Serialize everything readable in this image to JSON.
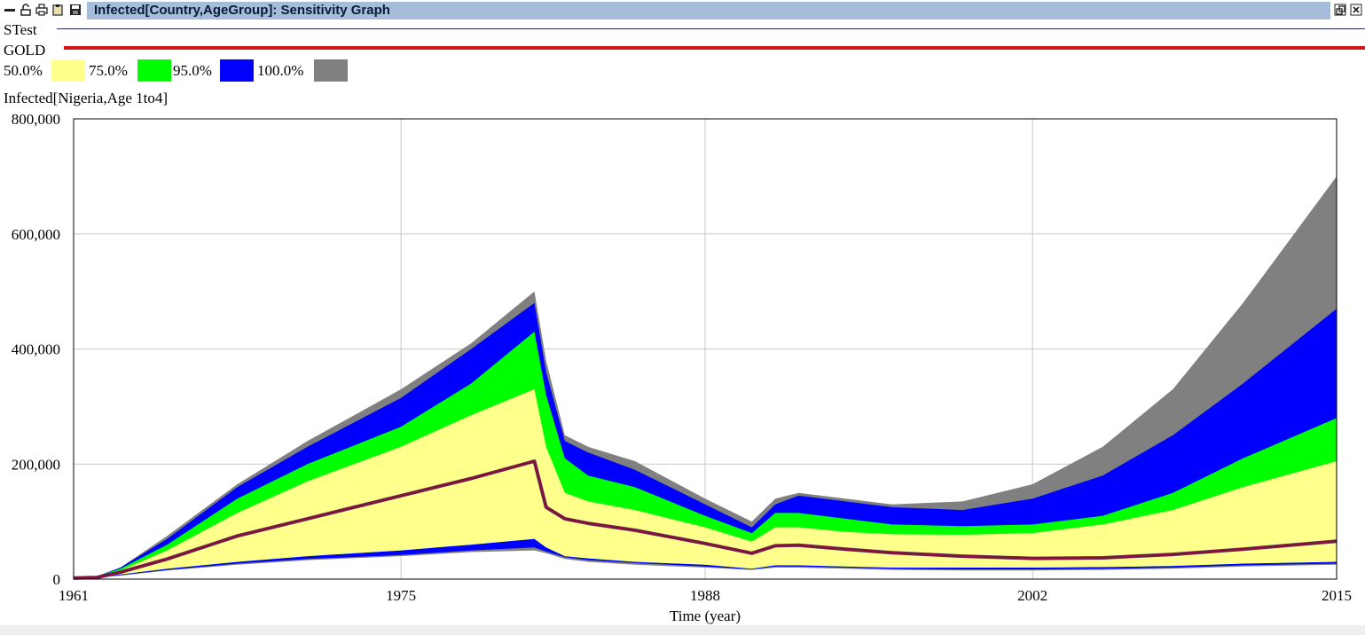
{
  "window": {
    "title": "Infected[Country,AgeGroup]: Sensitivity Graph",
    "icons": [
      "minimize-icon",
      "unlock-icon",
      "print-icon",
      "clipboard-icon",
      "save-icon"
    ],
    "right_icons": [
      "restore-icon",
      "close-icon"
    ]
  },
  "legend": {
    "lines": [
      {
        "name": "STest",
        "color": "#22285e"
      },
      {
        "name": "GOLD",
        "color": "#d41414"
      }
    ],
    "bands": [
      {
        "label": "50.0%",
        "color": "#ffff8c"
      },
      {
        "label": "75.0%",
        "color": "#00ff00"
      },
      {
        "label": "95.0%",
        "color": "#0000ff"
      },
      {
        "label": "100.0%",
        "color": "#808080"
      }
    ]
  },
  "variable_label": "Infected[Nigeria,Age 1to4]",
  "chart_data": {
    "type": "area",
    "title": "",
    "xlabel": "Time (year)",
    "ylabel": "",
    "xlim": [
      1961,
      2015
    ],
    "ylim": [
      0,
      800000
    ],
    "x_ticks": [
      "1961",
      "1975",
      "1988",
      "2002",
      "2015"
    ],
    "y_ticks": [
      "800,000",
      "600,000",
      "400,000",
      "200,000",
      "0"
    ],
    "grid": true,
    "x": [
      1961,
      1962,
      1963,
      1965,
      1968,
      1971,
      1975,
      1978,
      1980.7,
      1981.2,
      1982,
      1983,
      1985,
      1988,
      1990,
      1991,
      1992,
      1994,
      1996,
      1999,
      2002,
      2005,
      2008,
      2011,
      2015
    ],
    "series": [
      {
        "name": "100.0%",
        "color": "#808080",
        "band": "outer",
        "upper": [
          2000,
          5000,
          20000,
          75000,
          165000,
          240000,
          330000,
          410000,
          500000,
          380000,
          250000,
          230000,
          205000,
          140000,
          100000,
          140000,
          150000,
          140000,
          130000,
          135000,
          165000,
          230000,
          330000,
          480000,
          700000
        ],
        "lower": [
          2000,
          3000,
          6000,
          15000,
          25000,
          33000,
          40000,
          47000,
          50000,
          45000,
          35000,
          30000,
          25000,
          20000,
          16000,
          20000,
          20000,
          18000,
          16000,
          15000,
          15000,
          16000,
          18000,
          22000,
          25000
        ]
      },
      {
        "name": "95.0%",
        "color": "#0000ff",
        "band": "outer",
        "upper": [
          2000,
          5000,
          20000,
          70000,
          160000,
          230000,
          315000,
          400000,
          480000,
          360000,
          240000,
          220000,
          190000,
          130000,
          90000,
          130000,
          145000,
          135000,
          125000,
          120000,
          140000,
          180000,
          250000,
          340000,
          470000
        ],
        "lower": [
          2000,
          3000,
          7000,
          16000,
          27000,
          35000,
          42000,
          50000,
          55000,
          48000,
          38000,
          33000,
          28000,
          22000,
          17000,
          22000,
          22000,
          20000,
          18000,
          17000,
          17000,
          18000,
          20000,
          24000,
          27000
        ]
      },
      {
        "name": "75.0%",
        "color": "#00ff00",
        "band": "outer",
        "upper": [
          2000,
          5000,
          18000,
          60000,
          140000,
          200000,
          265000,
          340000,
          430000,
          320000,
          210000,
          180000,
          160000,
          110000,
          80000,
          115000,
          115000,
          105000,
          95000,
          92000,
          95000,
          110000,
          150000,
          210000,
          280000
        ],
        "lower": [
          2000,
          3000,
          8000,
          18000,
          30000,
          40000,
          50000,
          60000,
          70000,
          55000,
          40000,
          36000,
          30000,
          25000,
          18000,
          24000,
          24000,
          22000,
          20000,
          20000,
          20000,
          21000,
          23000,
          27000,
          30000
        ]
      },
      {
        "name": "50.0%",
        "color": "#ffff8c",
        "band": "inner",
        "upper": [
          2000,
          4000,
          15000,
          50000,
          115000,
          170000,
          230000,
          285000,
          330000,
          230000,
          150000,
          135000,
          120000,
          90000,
          65000,
          90000,
          90000,
          82000,
          78000,
          77000,
          80000,
          95000,
          120000,
          160000,
          205000
        ],
        "lower": [
          2000,
          3000,
          8000,
          18000,
          30000,
          40000,
          50000,
          60000,
          70000,
          55000,
          40000,
          36000,
          30000,
          25000,
          18000,
          24000,
          24000,
          22000,
          20000,
          20000,
          20000,
          21000,
          23000,
          27000,
          30000
        ]
      },
      {
        "name": "STest",
        "color": "#22285e",
        "type": "line",
        "values": [
          2000,
          3000,
          12000,
          35000,
          75000,
          105000,
          145000,
          175000,
          205000,
          125000,
          105000,
          97000,
          85000,
          62000,
          45000,
          58000,
          59000,
          52000,
          46000,
          40000,
          36000,
          37000,
          43000,
          52000,
          66000
        ]
      },
      {
        "name": "GOLD",
        "color": "#d41414",
        "type": "line",
        "values": [
          2000,
          3000,
          12000,
          35000,
          75000,
          105000,
          145000,
          175000,
          205000,
          125000,
          105000,
          97000,
          85000,
          62000,
          45000,
          58000,
          59000,
          52000,
          46000,
          40000,
          36000,
          37000,
          43000,
          52000,
          66000
        ]
      }
    ]
  }
}
